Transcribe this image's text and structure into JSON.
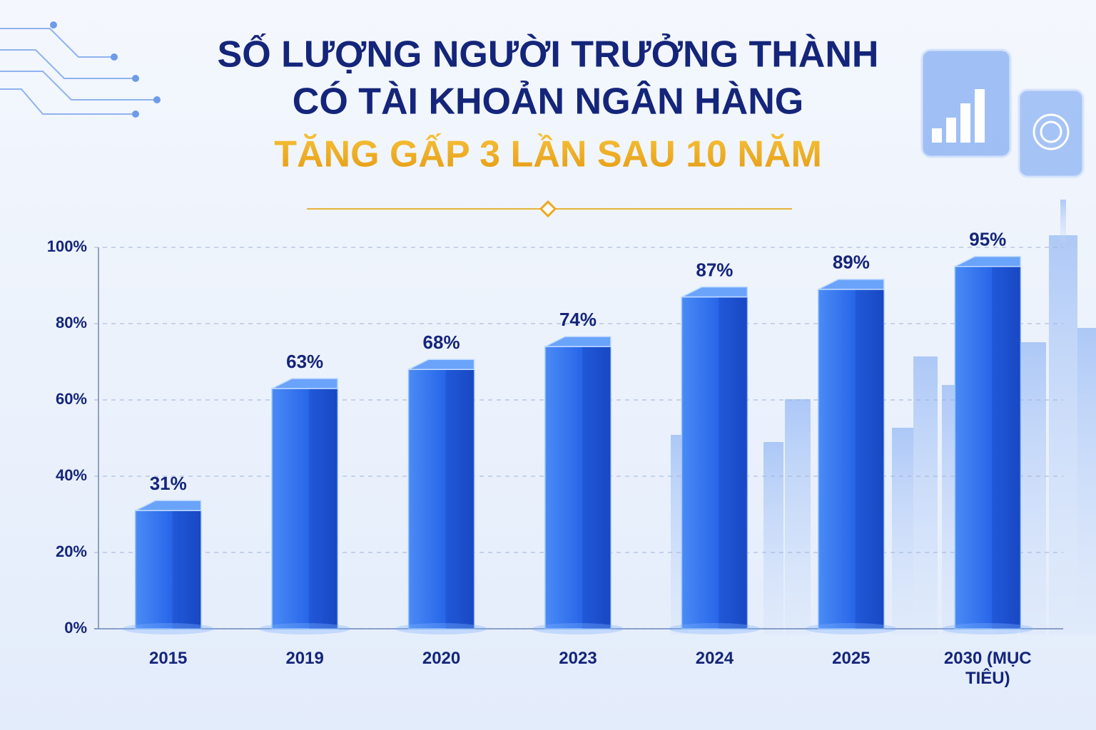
{
  "chart_data": {
    "type": "bar",
    "title_lines": [
      "SỐ LƯỢNG NGƯỜI TRƯỞNG THÀNH",
      "CÓ TÀI KHOẢN NGÂN HÀNG"
    ],
    "subtitle": "TĂNG GẤP 3 LẦN SAU 10 NĂM",
    "categories": [
      "2015",
      "2019",
      "2020",
      "2023",
      "2024",
      "2025",
      "2030 (MỤC TIÊU)"
    ],
    "values": [
      31,
      63,
      68,
      74,
      87,
      89,
      95
    ],
    "value_labels": [
      "31%",
      "63%",
      "68%",
      "74%",
      "87%",
      "89%",
      "95%"
    ],
    "color": "#2563e8",
    "ylim": [
      0,
      100
    ],
    "yticks": [
      {
        "value": 0,
        "label": "0%"
      },
      {
        "value": 20,
        "label": "20%"
      },
      {
        "value": 40,
        "label": "40%"
      },
      {
        "value": 60,
        "label": "60%"
      },
      {
        "value": 80,
        "label": "80%"
      },
      {
        "value": 100,
        "label": "100%"
      }
    ],
    "grid": true
  }
}
